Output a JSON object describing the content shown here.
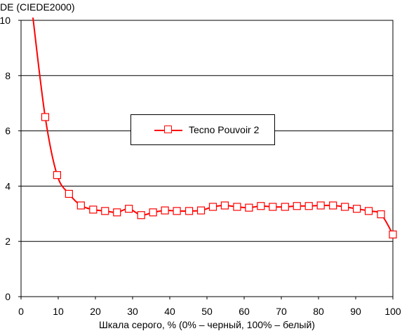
{
  "chart_data": {
    "type": "line",
    "ylabel": "DE (CIEDE2000)",
    "xlabel": "Шкала серого, % (0% – черный, 100% – белый)",
    "xlim": [
      0,
      100
    ],
    "ylim": [
      0,
      10
    ],
    "xticks": [
      0,
      10,
      20,
      30,
      40,
      50,
      60,
      70,
      80,
      90,
      100
    ],
    "yticks": [
      0,
      2,
      4,
      6,
      8,
      10
    ],
    "x_tick_labels": [
      "0",
      "10",
      "20",
      "30",
      "40",
      "50",
      "60",
      "70",
      "80",
      "90",
      "100"
    ],
    "y_tick_labels": [
      "0",
      "2",
      "4",
      "6",
      "8",
      "10"
    ],
    "grid": "horizontal",
    "legend_position": "center",
    "series": [
      {
        "name": "Tecno Pouvoir 2",
        "color": "#ff0000",
        "marker": "square",
        "x": [
          3.2,
          6.5,
          9.7,
          12.9,
          16.1,
          19.4,
          22.6,
          25.8,
          29.0,
          32.3,
          35.5,
          38.7,
          41.9,
          45.2,
          48.4,
          51.6,
          54.8,
          58.1,
          61.3,
          64.5,
          67.7,
          71.0,
          74.2,
          77.4,
          80.6,
          83.9,
          87.1,
          90.3,
          93.5,
          96.8,
          100
        ],
        "values": [
          10.1,
          6.5,
          4.4,
          3.72,
          3.3,
          3.15,
          3.1,
          3.05,
          3.18,
          2.95,
          3.05,
          3.12,
          3.1,
          3.1,
          3.12,
          3.25,
          3.3,
          3.25,
          3.22,
          3.28,
          3.25,
          3.25,
          3.28,
          3.28,
          3.3,
          3.3,
          3.25,
          3.18,
          3.1,
          2.98,
          2.25
        ]
      }
    ]
  }
}
